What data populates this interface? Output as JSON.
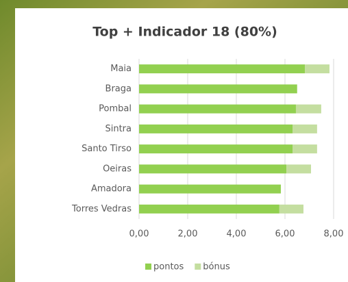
{
  "chart_data": {
    "type": "stacked-barh",
    "title": "Top + Indicador 18 (80%)",
    "categories": [
      "Maia",
      "Braga",
      "Pombal",
      "Sintra",
      "Santo Tirso",
      "Oeiras",
      "Amadora",
      "Torres Vedras"
    ],
    "series": [
      {
        "name": "pontos",
        "color": "#92d050",
        "values": [
          6.82,
          6.5,
          6.45,
          6.31,
          6.31,
          6.06,
          5.83,
          5.77
        ]
      },
      {
        "name": "bónus",
        "color": "#c4dea0",
        "values": [
          1.01,
          0,
          1.04,
          1.01,
          1.01,
          1.01,
          0,
          0.99
        ]
      }
    ],
    "xlim": [
      0,
      8
    ],
    "xticks": [
      {
        "value": 0,
        "label": "0,00"
      },
      {
        "value": 2,
        "label": "2,00"
      },
      {
        "value": 4,
        "label": "4,00"
      },
      {
        "value": 6,
        "label": "6,00"
      },
      {
        "value": 8,
        "label": "8,00"
      }
    ],
    "grid": true,
    "legend": "bottom"
  }
}
